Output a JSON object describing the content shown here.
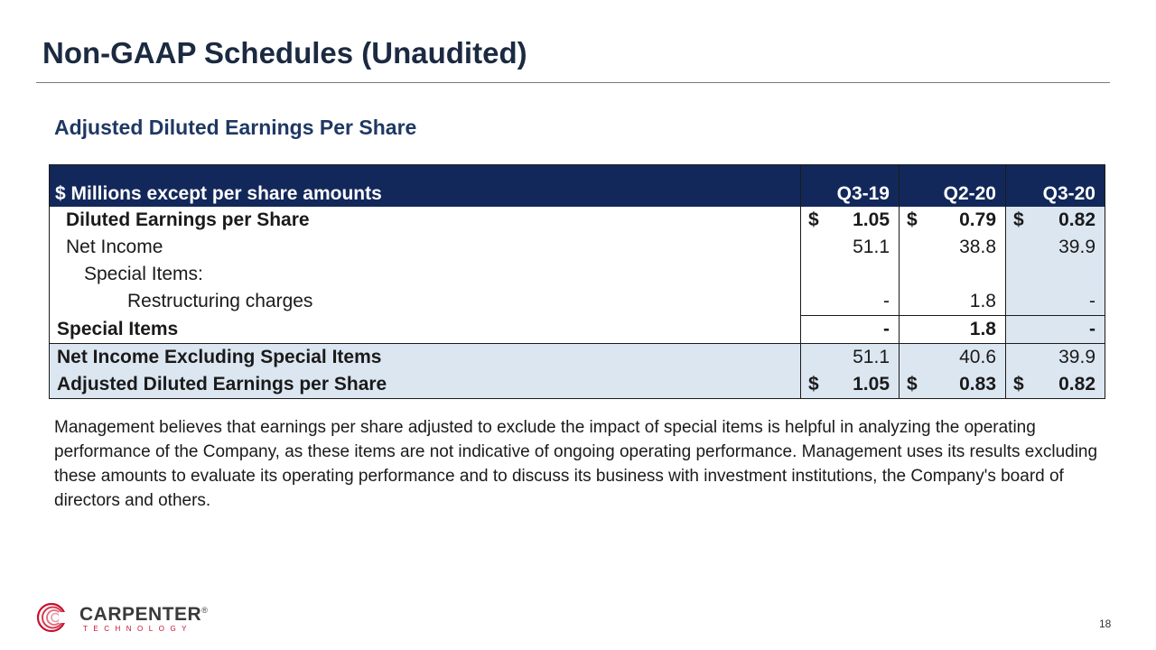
{
  "slide": {
    "title": "Non-GAAP Schedules (Unaudited)",
    "section_heading": "Adjusted Diluted Earnings Per Share",
    "page_number": "18"
  },
  "table": {
    "header_label": "$ Millions except per share amounts",
    "columns": [
      "Q3-19",
      "Q2-20",
      "Q3-20"
    ],
    "rows": [
      {
        "label": "Diluted Earnings per Share",
        "values": [
          "1.05",
          "0.79",
          "0.82"
        ],
        "currency": "$"
      },
      {
        "label": "Net Income",
        "values": [
          "51.1",
          "38.8",
          "39.9"
        ]
      },
      {
        "label": "Special Items:",
        "values": [
          "",
          "",
          ""
        ]
      },
      {
        "label": "Restructuring charges",
        "values": [
          "-",
          "1.8",
          "-"
        ]
      },
      {
        "label": "Special Items",
        "values": [
          "-",
          "1.8",
          "-"
        ]
      },
      {
        "label": "Net Income Excluding Special Items",
        "values": [
          "51.1",
          "40.6",
          "39.9"
        ]
      },
      {
        "label": "Adjusted Diluted Earnings per Share",
        "values": [
          "1.05",
          "0.83",
          "0.82"
        ],
        "currency": "$"
      }
    ]
  },
  "note": "Management believes that earnings per share adjusted to exclude the impact of special items is helpful in analyzing the operating performance of the Company, as these items are not indicative of ongoing operating performance.  Management uses its results excluding these amounts to evaluate its operating performance and to discuss its business with investment institutions, the Company's board of directors and others.",
  "logo": {
    "name": "CARPENTER",
    "trademark": "®",
    "subline": "TECHNOLOGY",
    "icon": "carpenter-swirl-logo"
  },
  "colors": {
    "header_bg": "#13285a",
    "shade": "#dce6f1",
    "heading": "#1f3864",
    "brand_red": "#c8102e"
  }
}
